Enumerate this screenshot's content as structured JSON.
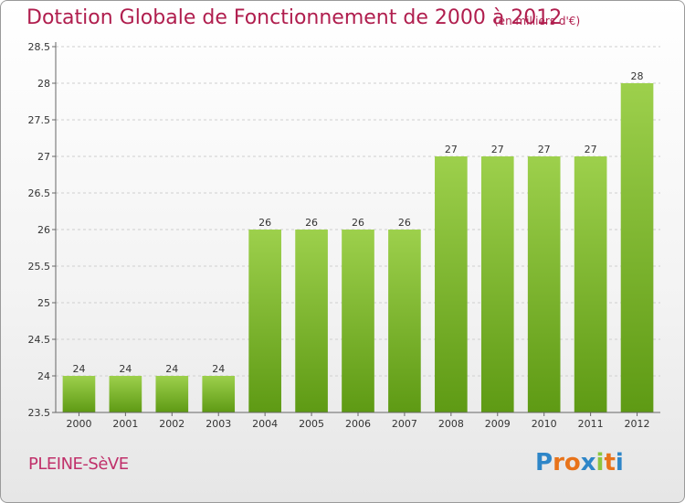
{
  "header": {
    "title": "Dotation Globale de Fonctionnement de 2000 à 2012",
    "subtitle": "(en milliers d'€)"
  },
  "footer": {
    "commune": "PLEINE-SèVE",
    "logo": "Proxiti",
    "logo_colors": [
      "#2e86c8",
      "#e8731a",
      "#e8731a",
      "#2e86c8",
      "#8dc63f",
      "#e8731a",
      "#2e86c8"
    ]
  },
  "colors": {
    "bar_top": "#9dd04c",
    "bar_bottom": "#5e9a14",
    "title": "#b01e4e"
  },
  "chart_data": {
    "type": "bar",
    "categories": [
      "2000",
      "2001",
      "2002",
      "2003",
      "2004",
      "2005",
      "2006",
      "2007",
      "2008",
      "2009",
      "2010",
      "2011",
      "2012"
    ],
    "values": [
      24,
      24,
      24,
      24,
      26,
      26,
      26,
      26,
      27,
      27,
      27,
      27,
      28
    ],
    "value_labels": [
      "24",
      "24",
      "24",
      "24",
      "26",
      "26",
      "26",
      "26",
      "27",
      "27",
      "27",
      "27",
      "28"
    ],
    "ylim": [
      23.5,
      28.5
    ],
    "yticks": [
      "23.5",
      "24",
      "24.5",
      "25",
      "25.5",
      "26",
      "26.5",
      "27",
      "27.5",
      "28",
      "28.5"
    ],
    "grid": true
  }
}
